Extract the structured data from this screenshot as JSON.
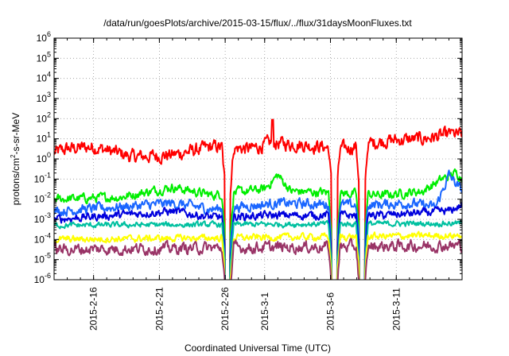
{
  "chart_data": {
    "type": "line",
    "title": "/data/run/goesPlots/archive/2015-03-15/flux/../flux/31daysMoonFluxes.txt",
    "xlabel": "Coordinated Universal Time (UTC)",
    "ylabel": {
      "main": "protons/cm",
      "sup": "2",
      "rest": "-s-sr-MeV"
    },
    "yscale": "log",
    "ylim_exp": [
      -6,
      6
    ],
    "y_ticks": [
      {
        "base": "10",
        "exp": "6"
      },
      {
        "base": "10",
        "exp": "5"
      },
      {
        "base": "10",
        "exp": "4"
      },
      {
        "base": "10",
        "exp": "3"
      },
      {
        "base": "10",
        "exp": "2"
      },
      {
        "base": "10",
        "exp": "1"
      },
      {
        "base": "10",
        "exp": "0"
      },
      {
        "base": "10",
        "exp": "-1"
      },
      {
        "base": "10",
        "exp": "-2"
      },
      {
        "base": "10",
        "exp": "-3"
      },
      {
        "base": "10",
        "exp": "-4"
      },
      {
        "base": "10",
        "exp": "-5"
      },
      {
        "base": "10",
        "exp": "-6"
      }
    ],
    "x_start": "2015-02-13",
    "x_end": "2015-03-16",
    "x_ticks": [
      "2015-2-16",
      "2015-2-21",
      "2015-2-26",
      "2015-3-1",
      "2015-3-6",
      "2015-3-11"
    ],
    "x_tick_dates": [
      "2015-02-16",
      "2015-02-21",
      "2015-02-26",
      "2015-03-01",
      "2015-03-06",
      "2015-03-11"
    ],
    "grid": true,
    "series": [
      {
        "color": "#ff0000",
        "base": 0.6,
        "noise": 0.3,
        "keypoints": [
          [
            0,
            0.3
          ],
          [
            1,
            0.5
          ],
          [
            3,
            0.6
          ],
          [
            6,
            0.1
          ],
          [
            9,
            0.2
          ],
          [
            12,
            0.6
          ],
          [
            15,
            0.5
          ],
          [
            16.5,
            0.8
          ],
          [
            19,
            0.7
          ],
          [
            22,
            0.5
          ],
          [
            25,
            0.9
          ],
          [
            28,
            1.0
          ],
          [
            30,
            1.2
          ],
          [
            31,
            1.2
          ]
        ],
        "spikes": [
          [
            16.6,
            1.95
          ],
          [
            30.2,
            1.45
          ]
        ]
      },
      {
        "color": "#00ee00",
        "base": -1.8,
        "noise": 0.2,
        "keypoints": [
          [
            0,
            -2.0
          ],
          [
            5,
            -1.9
          ],
          [
            9,
            -1.4
          ],
          [
            12,
            -1.8
          ],
          [
            16,
            -1.5
          ],
          [
            17,
            -0.8
          ],
          [
            18,
            -1.6
          ],
          [
            25,
            -1.8
          ],
          [
            28,
            -1.6
          ],
          [
            29.5,
            -1.0
          ],
          [
            30.5,
            -0.7
          ],
          [
            31,
            -0.9
          ]
        ],
        "spikes": []
      },
      {
        "color": "#1a66ff",
        "base": -2.5,
        "noise": 0.22,
        "keypoints": [
          [
            0,
            -2.6
          ],
          [
            9,
            -2.2
          ],
          [
            12,
            -2.5
          ],
          [
            17,
            -2.2
          ],
          [
            23,
            -2.3
          ],
          [
            27,
            -2.2
          ],
          [
            29,
            -2.4
          ],
          [
            30,
            -0.8
          ],
          [
            31,
            -1.6
          ]
        ],
        "spikes": []
      },
      {
        "color": "#0000dd",
        "base": -2.9,
        "noise": 0.18,
        "keypoints": [
          [
            0,
            -3.0
          ],
          [
            9,
            -2.6
          ],
          [
            12,
            -2.9
          ],
          [
            17,
            -2.8
          ],
          [
            25,
            -2.8
          ],
          [
            30,
            -2.6
          ],
          [
            31,
            -2.3
          ]
        ],
        "spikes": []
      },
      {
        "color": "#00c0a0",
        "base": -3.3,
        "noise": 0.12,
        "keypoints": [
          [
            0,
            -3.3
          ],
          [
            31,
            -3.2
          ]
        ],
        "spikes": []
      },
      {
        "color": "#ffff00",
        "base": -3.9,
        "noise": 0.15,
        "keypoints": [
          [
            0,
            -4.0
          ],
          [
            31,
            -3.8
          ]
        ],
        "spikes": []
      },
      {
        "color": "#993366",
        "base": -4.4,
        "noise": 0.25,
        "keypoints": [
          [
            0,
            -4.5
          ],
          [
            31,
            -4.3
          ]
        ],
        "spikes": []
      }
    ],
    "dropouts": [
      13.2,
      21.3,
      23.4
    ]
  }
}
